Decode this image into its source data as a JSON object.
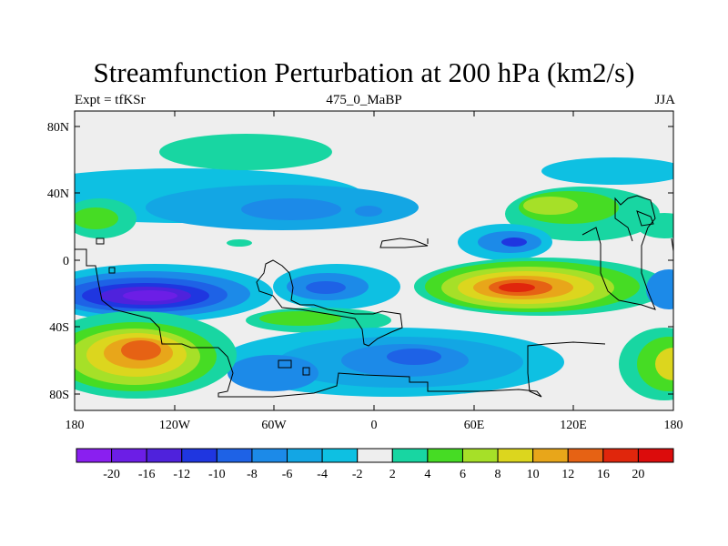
{
  "title": "Streamfunction Perturbation at 200 hPa (km2/s)",
  "subtitle_left": "Expt = tfKSr",
  "subtitle_center": "475_0_MaBP",
  "subtitle_right": "JJA",
  "y_ticks": [
    "80N",
    "40N",
    "0",
    "40S",
    "80S"
  ],
  "x_ticks": [
    "180",
    "120W",
    "60W",
    "0",
    "60E",
    "120E",
    "180"
  ],
  "colorbar": {
    "labels": [
      "-20",
      "-16",
      "-12",
      "-10",
      "-8",
      "-6",
      "-4",
      "-2",
      "2",
      "4",
      "6",
      "8",
      "10",
      "12",
      "16",
      "20"
    ],
    "colors": [
      "#8a1ff0",
      "#6c1ee6",
      "#4f22dc",
      "#1f36e0",
      "#1e62e6",
      "#1c8ae8",
      "#13a6e4",
      "#0ec0e2",
      "#eeeeee",
      "#18d6a2",
      "#46dc24",
      "#a6e028",
      "#dcd61e",
      "#e8a61a",
      "#e66214",
      "#e0260c",
      "#dc0c0c"
    ]
  }
}
